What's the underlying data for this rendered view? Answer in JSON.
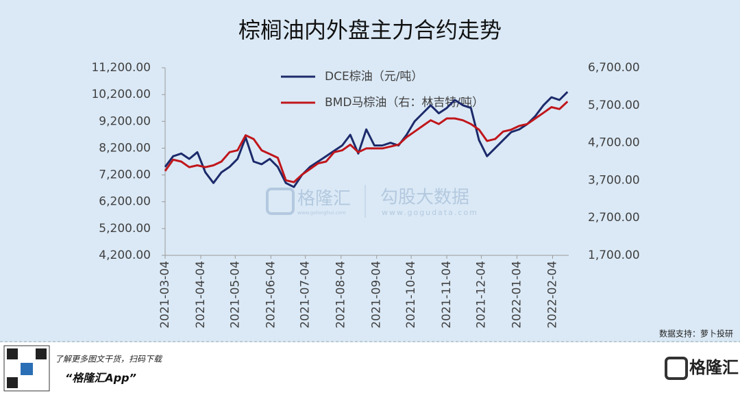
{
  "chart_data": {
    "type": "line",
    "title": "棕榈油内外盘主力合约走势",
    "x": [
      "2021-03-04",
      "2021-03-11",
      "2021-03-18",
      "2021-03-25",
      "2021-04-01",
      "2021-04-08",
      "2021-04-15",
      "2021-04-22",
      "2021-04-29",
      "2021-05-06",
      "2021-05-13",
      "2021-05-20",
      "2021-05-27",
      "2021-06-03",
      "2021-06-10",
      "2021-06-17",
      "2021-06-24",
      "2021-07-01",
      "2021-07-08",
      "2021-07-15",
      "2021-07-22",
      "2021-07-29",
      "2021-08-05",
      "2021-08-12",
      "2021-08-19",
      "2021-08-26",
      "2021-09-02",
      "2021-09-09",
      "2021-09-16",
      "2021-09-23",
      "2021-09-30",
      "2021-10-07",
      "2021-10-14",
      "2021-10-21",
      "2021-10-28",
      "2021-11-04",
      "2021-11-11",
      "2021-11-18",
      "2021-11-25",
      "2021-12-02",
      "2021-12-09",
      "2021-12-16",
      "2021-12-23",
      "2021-12-30",
      "2022-01-06",
      "2022-01-13",
      "2022-01-20",
      "2022-01-27",
      "2022-02-03",
      "2022-02-10",
      "2022-02-17"
    ],
    "series": [
      {
        "name": "DCE棕油（元/吨）",
        "color": "#1c2a6b",
        "values": [
          7500,
          7900,
          8000,
          7800,
          8050,
          7300,
          6900,
          7300,
          7500,
          7800,
          8600,
          7700,
          7600,
          7800,
          7500,
          6900,
          6750,
          7200,
          7500,
          7700,
          7900,
          8100,
          8300,
          8700,
          8000,
          8900,
          8300,
          8300,
          8400,
          8300,
          8700,
          9200,
          9500,
          9800,
          9500,
          9700,
          10000,
          9800,
          9700,
          8500,
          7900,
          8200,
          8500,
          8800,
          8900,
          9100,
          9400,
          9800,
          10100,
          10000,
          10300
        ]
      },
      {
        "name": "BMD马棕油（右：林吉特/吨）",
        "color": "#c0161b",
        "axis": "y2",
        "values": [
          3950,
          4250,
          4200,
          4050,
          4100,
          4050,
          4100,
          4200,
          4450,
          4500,
          4900,
          4800,
          4500,
          4400,
          4300,
          3700,
          3650,
          3850,
          4000,
          4150,
          4200,
          4450,
          4500,
          4650,
          4450,
          4550,
          4550,
          4550,
          4600,
          4650,
          4850,
          5000,
          5150,
          5300,
          5200,
          5350,
          5350,
          5300,
          5200,
          5050,
          4750,
          4800,
          5000,
          5050,
          5150,
          5200,
          5350,
          5500,
          5650,
          5600,
          5800
        ]
      }
    ],
    "xlim": [
      "2021-03-04",
      "2022-02-21"
    ],
    "xticks": [
      "2021-03-04",
      "2021-04-04",
      "2021-05-04",
      "2021-06-04",
      "2021-07-04",
      "2021-08-04",
      "2021-09-04",
      "2021-10-04",
      "2021-11-04",
      "2021-12-04",
      "2022-01-04",
      "2022-02-04"
    ],
    "ylim": [
      4200,
      11200
    ],
    "yticks": [
      {
        "value": 4200,
        "label": "4,200.00"
      },
      {
        "value": 5200,
        "label": "5,200.00"
      },
      {
        "value": 6200,
        "label": "6,200.00"
      },
      {
        "value": 7200,
        "label": "7,200.00"
      },
      {
        "value": 8200,
        "label": "8,200.00"
      },
      {
        "value": 9200,
        "label": "9,200.00"
      },
      {
        "value": 10200,
        "label": "10,200.00"
      },
      {
        "value": 11200,
        "label": "11,200.00"
      }
    ],
    "y2lim": [
      1700,
      6700
    ],
    "y2ticks": [
      {
        "value": 1700,
        "label": "1,700.00"
      },
      {
        "value": 2700,
        "label": "2,700.00"
      },
      {
        "value": 3700,
        "label": "3,700.00"
      },
      {
        "value": 4700,
        "label": "4,700.00"
      },
      {
        "value": 5700,
        "label": "5,700.00"
      },
      {
        "value": 6700,
        "label": "6,700.00"
      }
    ],
    "legend": "top",
    "source": "数据支持：萝卜投研"
  },
  "watermark": {
    "brand": "格隆汇",
    "brand_url": "www.gelonghui.com",
    "data_brand": "勾股大数据",
    "data_url": "www.gogudata.com"
  },
  "footer": {
    "note": "了解更多图文干货，扫码下载",
    "app": "“格隆汇App”",
    "logo": "格隆汇"
  }
}
